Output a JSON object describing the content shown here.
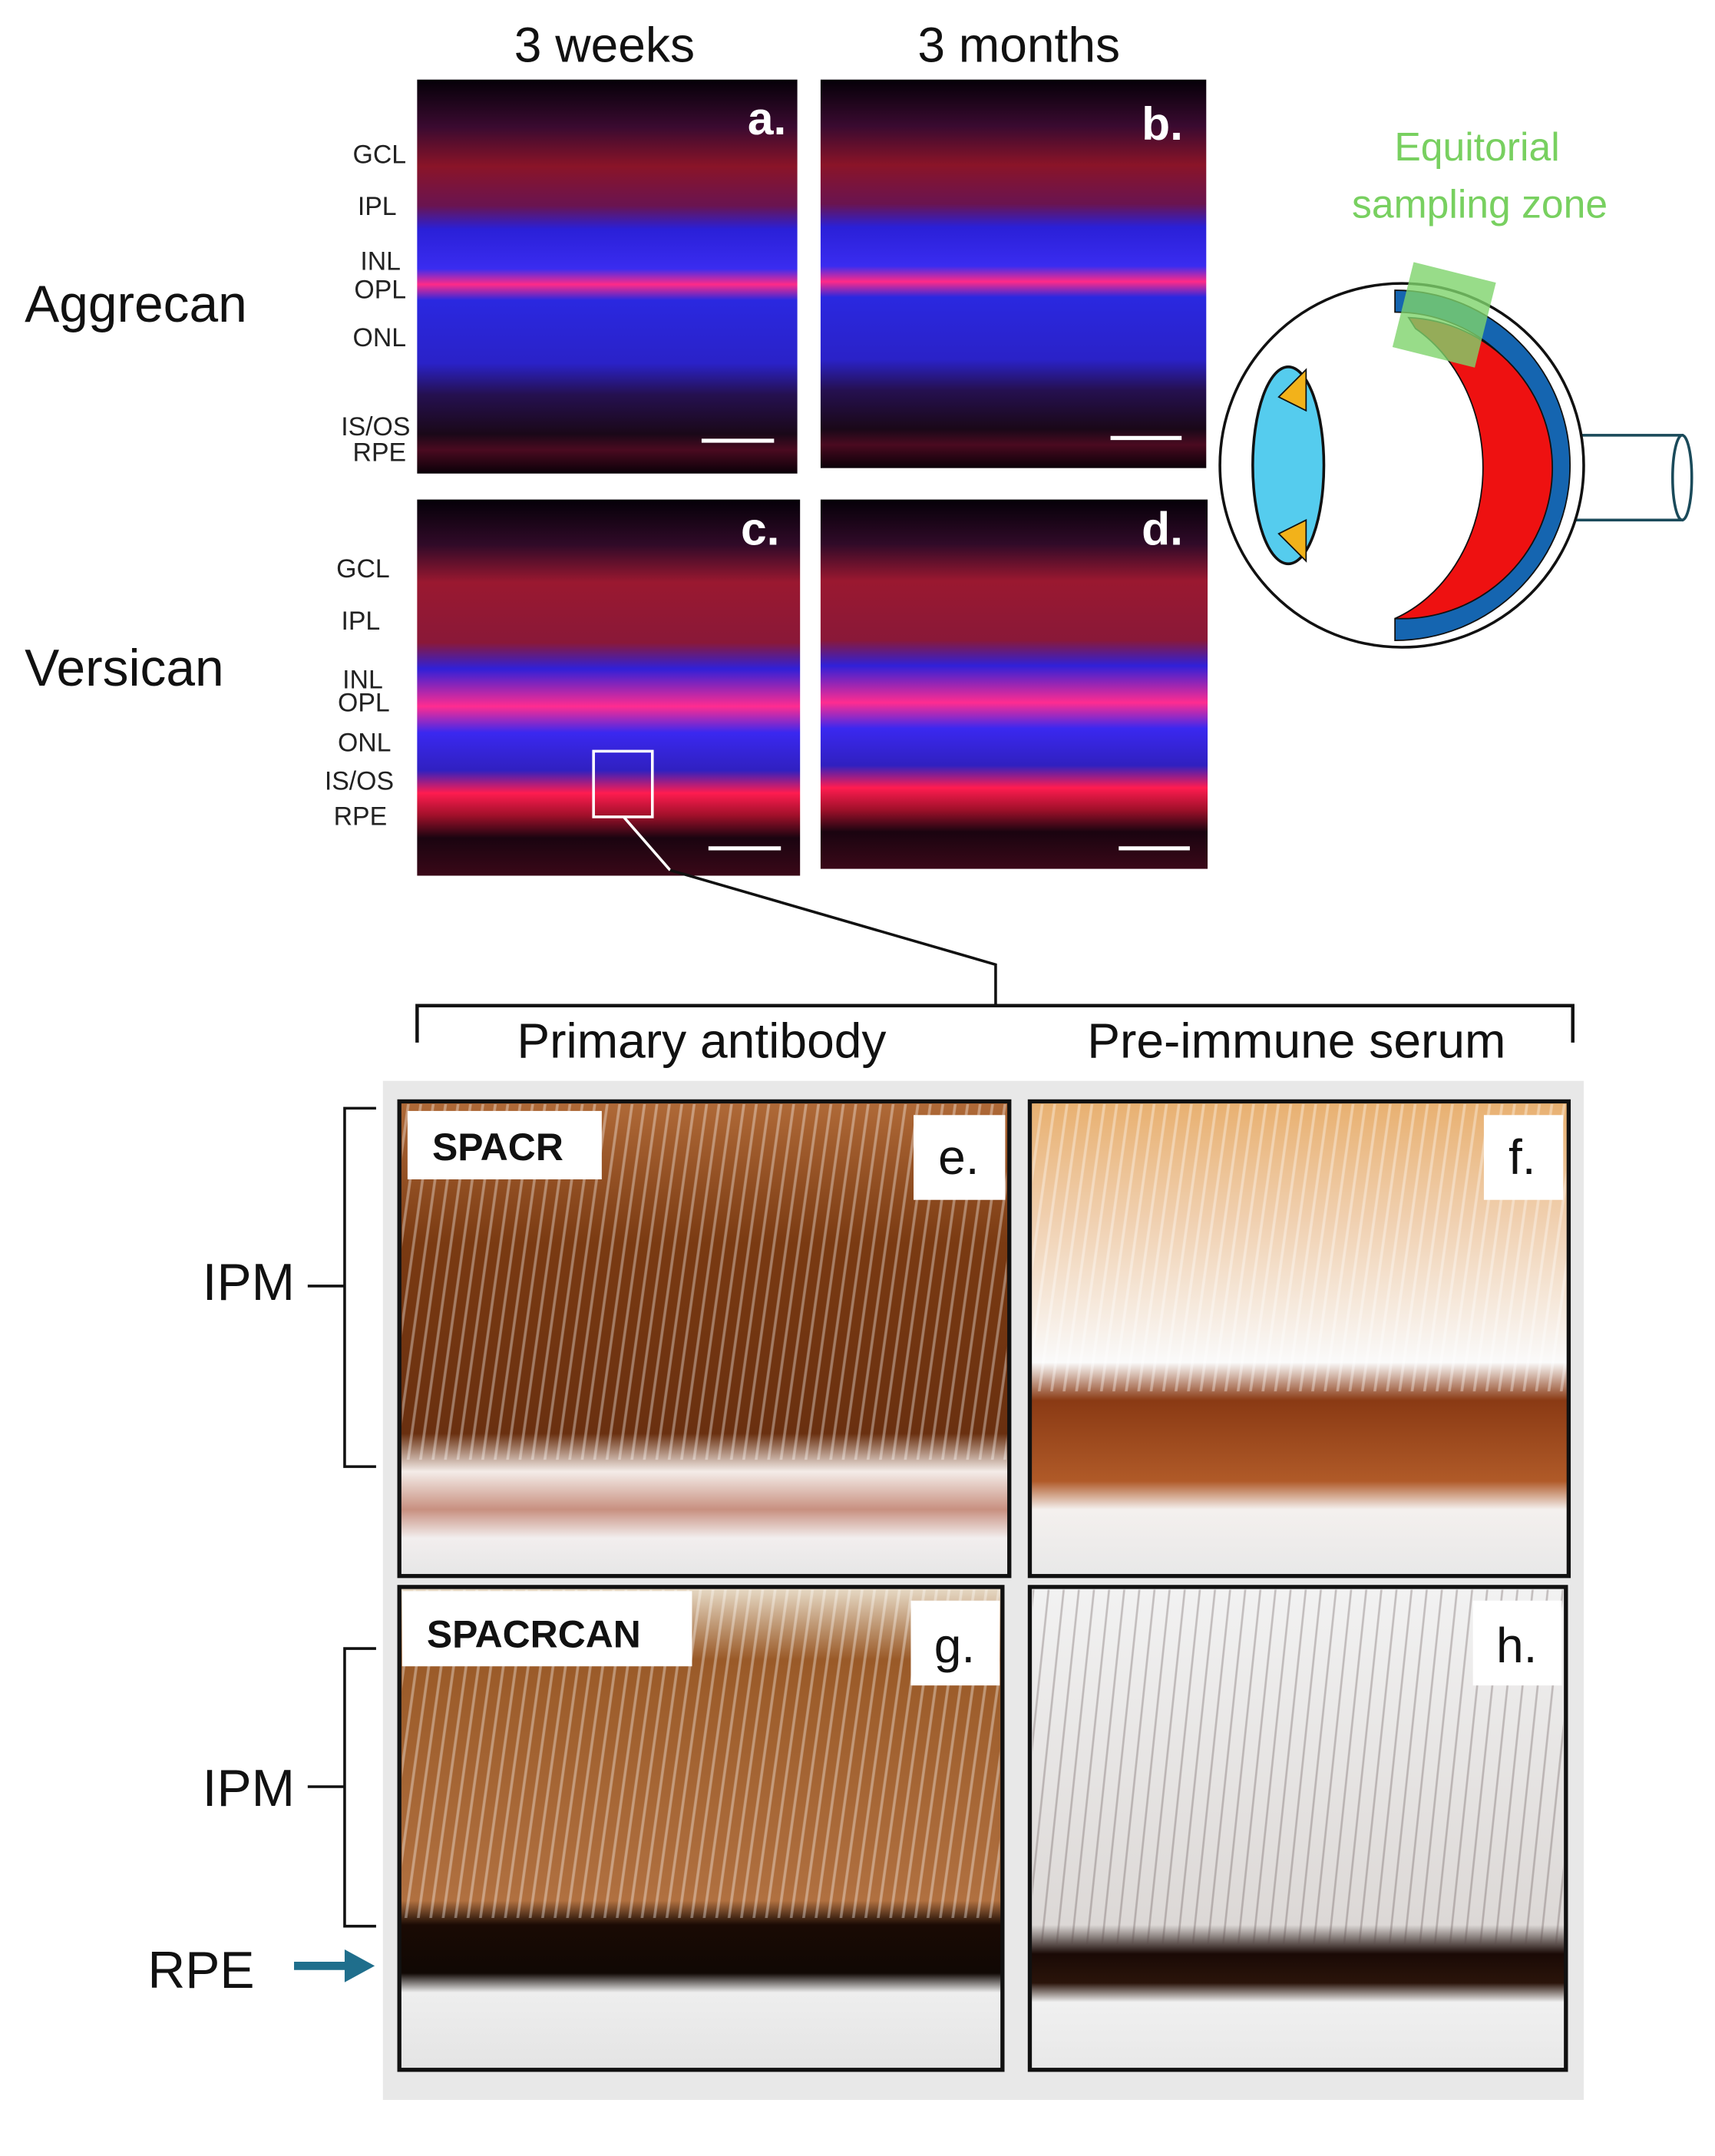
{
  "fluorescence": {
    "columns": [
      "3 weeks",
      "3 months"
    ],
    "rows": [
      "Aggrecan",
      "Versican"
    ],
    "panels": [
      {
        "letter": "a.",
        "layers": [
          "GCL",
          "IPL",
          "INL",
          "OPL",
          "ONL",
          "IS/OS",
          "RPE"
        ]
      },
      {
        "letter": "b."
      },
      {
        "letter": "c.",
        "layers": [
          "GCL",
          "IPL",
          "INL",
          "OPL",
          "ONL",
          "IS/OS",
          "RPE"
        ]
      },
      {
        "letter": "d."
      }
    ]
  },
  "diagram": {
    "label": [
      "Equitorial",
      "sampling zone"
    ]
  },
  "ihc": {
    "columns": [
      "Primary antibody",
      "Pre-immune serum"
    ],
    "panels": [
      {
        "letter": "e.",
        "stain": "SPACR"
      },
      {
        "letter": "f."
      },
      {
        "letter": "g.",
        "stain": "SPACRCAN"
      },
      {
        "letter": "h."
      }
    ],
    "regions": [
      "IPM",
      "IPM",
      "RPE"
    ]
  }
}
